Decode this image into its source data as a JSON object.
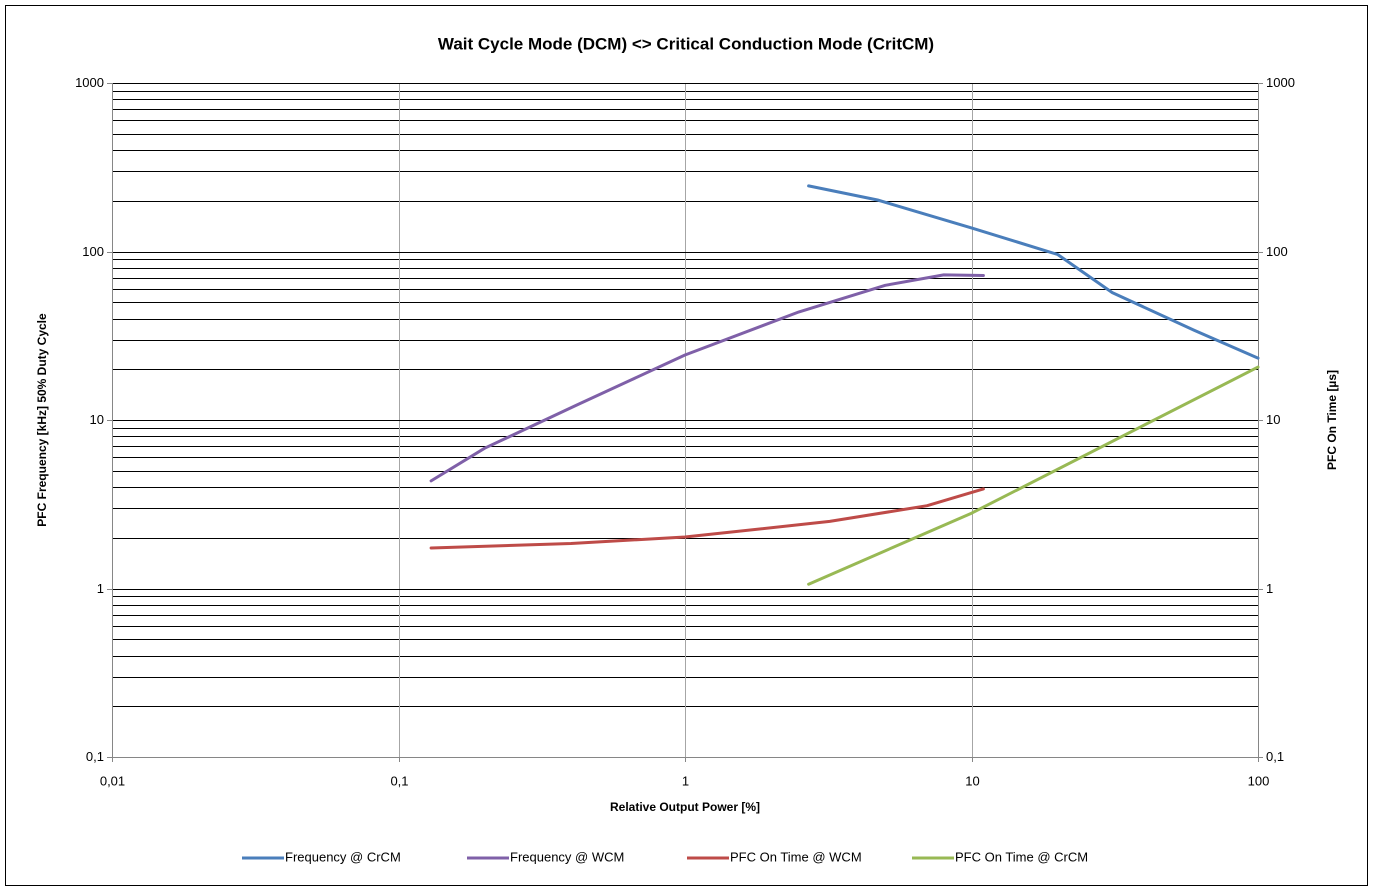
{
  "chart_data": {
    "type": "line",
    "title": "Wait Cycle Mode (DCM) <> Critical Conduction Mode (CritCM)",
    "x_label": "Relative Output Power [%]",
    "y_label": "PFC Frequency [kHz] 50% Duty Cycle",
    "y2_label": "PFC On Time [µs]",
    "xlog": true,
    "ylog": true,
    "y2log": true,
    "grid": true,
    "legend": "bottom",
    "xlim": [
      0.01,
      100
    ],
    "ylim": [
      0.1,
      1000
    ],
    "y2lim": [
      0.1,
      1000
    ],
    "xticks": [
      {
        "value": 0.01,
        "label": "0,01"
      },
      {
        "value": 0.1,
        "label": "0,1"
      },
      1,
      10,
      100
    ],
    "yticks": [
      {
        "value": 0.1,
        "label": "0,1"
      },
      1,
      10,
      100,
      1000
    ],
    "y2ticks": [
      {
        "value": 0.1,
        "label": "0,1"
      },
      1,
      10,
      100,
      1000
    ],
    "y_minor_gridlines": [
      0.2,
      0.3,
      0.4,
      0.5,
      0.6,
      0.7,
      0.8,
      0.9,
      2,
      3,
      4,
      5,
      6,
      7,
      8,
      9,
      20,
      30,
      40,
      50,
      60,
      70,
      80,
      90,
      200,
      300,
      400,
      500,
      600,
      700,
      800,
      900
    ],
    "series": [
      {
        "name": "Frequency @ CrCM",
        "color": "#4a7ebb",
        "x": [
          2.7,
          4.7,
          10,
          20,
          31,
          60,
          100
        ],
        "values": [
          245,
          202,
          138,
          96,
          57,
          34,
          23.3
        ]
      },
      {
        "name": "Frequency @ WCM",
        "color": "#7f60a8",
        "x": [
          0.13,
          0.2,
          0.42,
          1,
          2.5,
          5,
          8,
          11
        ],
        "values": [
          4.35,
          6.8,
          12.3,
          24.3,
          43.8,
          63,
          72.6,
          72
        ]
      },
      {
        "name": "PFC On Time @ WCM",
        "color": "#be4b48",
        "axis": "y2",
        "x": [
          0.13,
          0.4,
          1,
          3.2,
          7,
          11
        ],
        "values": [
          1.74,
          1.85,
          2.02,
          2.5,
          3.1,
          3.9
        ]
      },
      {
        "name": "PFC On Time @ CrCM",
        "color": "#98b954",
        "axis": "y2",
        "x": [
          2.7,
          10,
          100
        ],
        "values": [
          1.06,
          2.8,
          20.6
        ]
      }
    ]
  }
}
